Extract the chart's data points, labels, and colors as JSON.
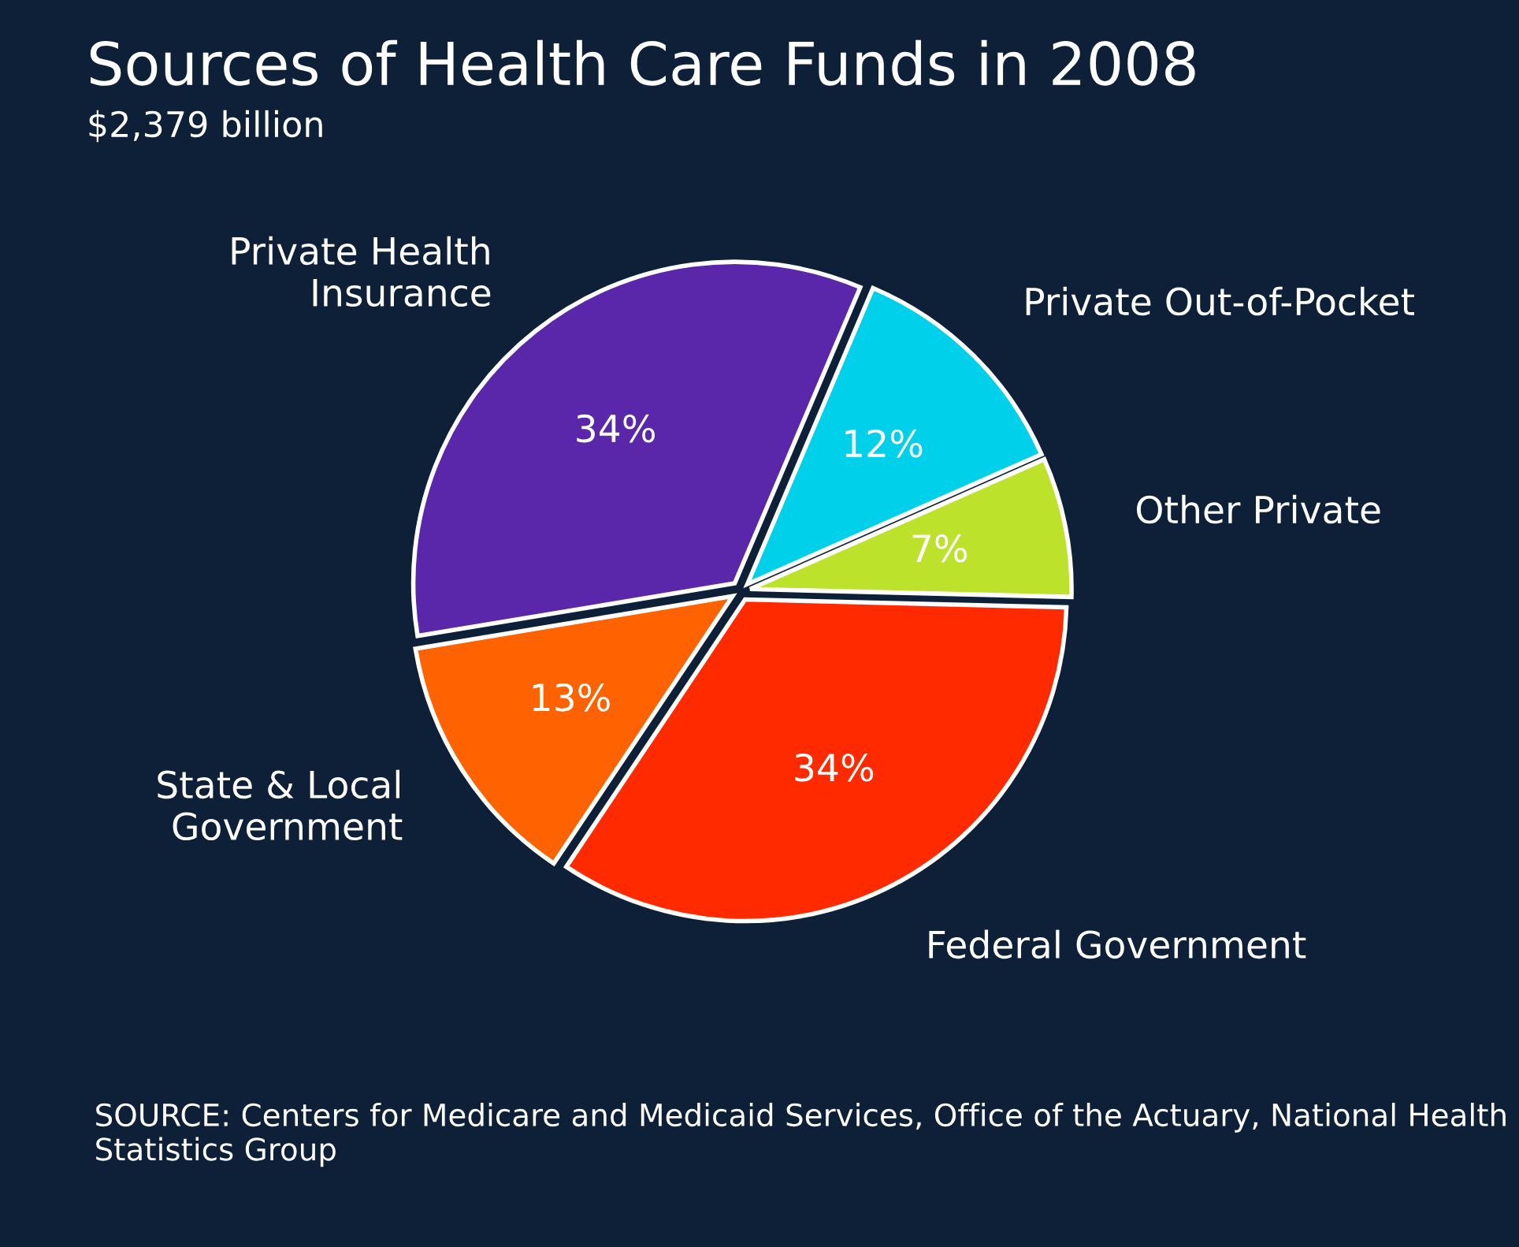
{
  "chart_data": {
    "type": "pie",
    "title": "Sources of Health Care Funds in 2008",
    "subtitle": "$2,379 billion",
    "categories": [
      "Private Out-of-Pocket",
      "Other Private",
      "Federal Government",
      "State & Local\nGovernment",
      "Private Health\nInsurance"
    ],
    "values": [
      12,
      7,
      34,
      13,
      34
    ],
    "colors": [
      "#00d0ea",
      "#bde22c",
      "#ff2a00",
      "#ff6200",
      "#5b27aa"
    ],
    "value_labels": [
      "12%",
      "7%",
      "34%",
      "13%",
      "34%"
    ],
    "legend": false,
    "annotations": [
      "SOURCE: Centers for Medicare and Medicaid Services, Office of the Actuary, National Health Statistics Group"
    ]
  }
}
